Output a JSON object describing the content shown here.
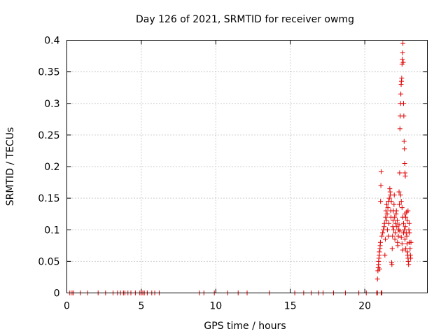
{
  "chart_data": {
    "type": "scatter",
    "title": "Day 126 of 2021, SRMTID for receiver owmg",
    "xlabel": "GPS time / hours",
    "ylabel": "SRMTID / TECUs",
    "xlim": [
      0,
      24.2
    ],
    "ylim": [
      0,
      0.4
    ],
    "xticks": [
      0,
      5,
      10,
      15,
      20
    ],
    "xtick_labels": [
      "0",
      "5",
      "10",
      "15",
      "20"
    ],
    "yticks": [
      0,
      0.05,
      0.1,
      0.15,
      0.2,
      0.25,
      0.3,
      0.35,
      0.4
    ],
    "ytick_labels": [
      "0",
      "0.05",
      "0.1",
      "0.15",
      "0.2",
      "0.25",
      "0.3",
      "0.35",
      "0.4"
    ],
    "grid": true,
    "marker": "+",
    "series": [
      {
        "name": "SRMTID",
        "color": "#e00000",
        "points": [
          [
            0.2,
            0
          ],
          [
            0.35,
            0
          ],
          [
            0.45,
            0
          ],
          [
            0.9,
            0
          ],
          [
            1.4,
            0
          ],
          [
            2.1,
            0
          ],
          [
            2.6,
            0
          ],
          [
            3.1,
            0
          ],
          [
            3.4,
            0
          ],
          [
            3.6,
            0
          ],
          [
            3.8,
            0
          ],
          [
            3.9,
            0
          ],
          [
            4.1,
            0
          ],
          [
            4.3,
            0
          ],
          [
            4.6,
            0
          ],
          [
            4.9,
            0
          ],
          [
            5.0,
            0
          ],
          [
            5.1,
            0
          ],
          [
            5.2,
            0
          ],
          [
            5.4,
            0
          ],
          [
            5.7,
            0
          ],
          [
            5.9,
            0
          ],
          [
            6.2,
            0
          ],
          [
            8.9,
            0
          ],
          [
            9.2,
            0
          ],
          [
            9.9,
            0
          ],
          [
            10.8,
            0
          ],
          [
            11.5,
            0
          ],
          [
            12.1,
            0
          ],
          [
            13.6,
            0
          ],
          [
            15.3,
            0
          ],
          [
            15.9,
            0
          ],
          [
            16.4,
            0
          ],
          [
            16.9,
            0
          ],
          [
            17.2,
            0
          ],
          [
            17.9,
            0
          ],
          [
            18.7,
            0
          ],
          [
            19.6,
            0
          ],
          [
            20.1,
            0
          ],
          [
            20.8,
            0
          ],
          [
            20.85,
            0
          ],
          [
            21.1,
            0
          ],
          [
            21.15,
            0
          ],
          [
            20.85,
            0.022
          ],
          [
            20.88,
            0.035
          ],
          [
            20.9,
            0.04
          ],
          [
            20.92,
            0.045
          ],
          [
            20.93,
            0.05
          ],
          [
            20.95,
            0.055
          ],
          [
            20.97,
            0.06
          ],
          [
            20.98,
            0.065
          ],
          [
            21.0,
            0.038
          ],
          [
            21.02,
            0.07
          ],
          [
            21.03,
            0.075
          ],
          [
            21.05,
            0.08
          ],
          [
            21.06,
            0.145
          ],
          [
            21.08,
            0.17
          ],
          [
            21.1,
            0.192
          ],
          [
            21.15,
            0.09
          ],
          [
            21.2,
            0.095
          ],
          [
            21.25,
            0.1
          ],
          [
            21.3,
            0.105
          ],
          [
            21.32,
            0.11
          ],
          [
            21.35,
            0.06
          ],
          [
            21.38,
            0.085
          ],
          [
            21.4,
            0.12
          ],
          [
            21.42,
            0.13
          ],
          [
            21.45,
            0.115
          ],
          [
            21.47,
            0.14
          ],
          [
            21.5,
            0.125
          ],
          [
            21.52,
            0.1
          ],
          [
            21.55,
            0.135
          ],
          [
            21.57,
            0.145
          ],
          [
            21.6,
            0.09
          ],
          [
            21.62,
            0.11
          ],
          [
            21.65,
            0.15
          ],
          [
            21.68,
            0.165
          ],
          [
            21.7,
            0.16
          ],
          [
            21.72,
            0.155
          ],
          [
            21.74,
            0.13
          ],
          [
            21.76,
            0.12
          ],
          [
            21.78,
            0.145
          ],
          [
            21.8,
            0.048
          ],
          [
            21.82,
            0.045
          ],
          [
            21.84,
            0.07
          ],
          [
            21.86,
            0.09
          ],
          [
            21.88,
            0.105
          ],
          [
            21.9,
            0.115
          ],
          [
            21.92,
            0.13
          ],
          [
            21.94,
            0.1
          ],
          [
            21.96,
            0.14
          ],
          [
            21.98,
            0.155
          ],
          [
            22.0,
            0.12
          ],
          [
            22.02,
            0.085
          ],
          [
            22.05,
            0.095
          ],
          [
            22.08,
            0.11
          ],
          [
            22.1,
            0.125
          ],
          [
            22.12,
            0.13
          ],
          [
            22.15,
            0.105
          ],
          [
            22.18,
            0.115
          ],
          [
            22.2,
            0.08
          ],
          [
            22.22,
            0.075
          ],
          [
            22.25,
            0.09
          ],
          [
            22.28,
            0.1
          ],
          [
            22.3,
            0.16
          ],
          [
            22.32,
            0.14
          ],
          [
            22.34,
            0.19
          ],
          [
            22.36,
            0.26
          ],
          [
            22.38,
            0.28
          ],
          [
            22.4,
            0.3
          ],
          [
            22.42,
            0.315
          ],
          [
            22.44,
            0.33
          ],
          [
            22.46,
            0.335
          ],
          [
            22.48,
            0.34
          ],
          [
            22.5,
            0.362
          ],
          [
            22.52,
            0.37
          ],
          [
            22.54,
            0.38
          ],
          [
            22.56,
            0.395
          ],
          [
            22.58,
            0.365
          ],
          [
            22.6,
            0.3
          ],
          [
            22.62,
            0.28
          ],
          [
            22.64,
            0.24
          ],
          [
            22.66,
            0.228
          ],
          [
            22.68,
            0.205
          ],
          [
            22.7,
            0.19
          ],
          [
            22.72,
            0.185
          ],
          [
            22.4,
            0.155
          ],
          [
            22.45,
            0.145
          ],
          [
            22.5,
            0.135
          ],
          [
            22.55,
            0.12
          ],
          [
            22.6,
            0.11
          ],
          [
            22.65,
            0.1
          ],
          [
            22.7,
            0.125
          ],
          [
            22.72,
            0.105
          ],
          [
            22.75,
            0.12
          ],
          [
            22.78,
            0.095
          ],
          [
            22.8,
            0.128
          ],
          [
            22.82,
            0.09
          ],
          [
            22.84,
            0.078
          ],
          [
            22.86,
            0.065
          ],
          [
            22.88,
            0.06
          ],
          [
            22.9,
            0.055
          ],
          [
            22.92,
            0.05
          ],
          [
            22.94,
            0.045
          ],
          [
            22.96,
            0.1
          ],
          [
            22.98,
            0.11
          ],
          [
            23.0,
            0.095
          ],
          [
            23.02,
            0.08
          ],
          [
            23.04,
            0.07
          ],
          [
            23.06,
            0.06
          ],
          [
            23.08,
            0.055
          ],
          [
            23.1,
            0.08
          ],
          [
            22.85,
            0.115
          ],
          [
            22.9,
            0.13
          ],
          [
            22.7,
            0.085
          ],
          [
            22.75,
            0.07
          ],
          [
            22.6,
            0.095
          ],
          [
            22.55,
            0.068
          ],
          [
            22.5,
            0.078
          ],
          [
            22.45,
            0.088
          ],
          [
            22.35,
            0.098
          ],
          [
            22.3,
            0.108
          ]
        ]
      }
    ]
  }
}
